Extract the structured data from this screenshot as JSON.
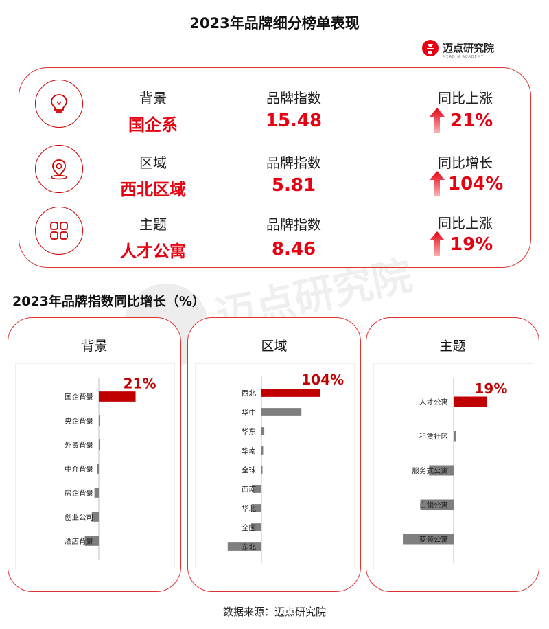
{
  "title": "2023年品牌细分榜单表现",
  "logo": {
    "name": "迈点研究院",
    "subtitle": "MEADIN ACADEMY"
  },
  "summary_rows": [
    {
      "icon": "lightbulb-icon",
      "category_label": "背景",
      "category_value": "国企系",
      "index_label": "品牌指数",
      "index_value": "15.48",
      "growth_label": "同比上涨",
      "growth_value": "21%"
    },
    {
      "icon": "location-pin-icon",
      "category_label": "区域",
      "category_value": "西北区域",
      "index_label": "品牌指数",
      "index_value": "5.81",
      "growth_label": "同比增长",
      "growth_value": "104%"
    },
    {
      "icon": "grid-apps-icon",
      "category_label": "主题",
      "category_value": "人才公寓",
      "index_label": "品牌指数",
      "index_value": "8.46",
      "growth_label": "同比上涨",
      "growth_value": "19%"
    }
  ],
  "section_title": "2023年品牌指数同比增长（%）",
  "source": "数据来源：迈点研究院",
  "watermark": {
    "name": "迈点研究院",
    "subtitle": "MEADIN ACADEMY"
  },
  "colors": {
    "accent": "#e60012",
    "bar_highlight": "#c00000",
    "bar_gray": "#7f7f7f",
    "border": "#dd3333"
  },
  "chart_data": [
    {
      "type": "bar",
      "title": "背景",
      "categories": [
        "国企背景",
        "央企背景",
        "外资背景",
        "中介背景",
        "房企背景",
        "创业公司",
        "酒店背景"
      ],
      "values": [
        21,
        0.5,
        0.5,
        -1,
        -2.5,
        -4,
        -8
      ],
      "highlight_label": "21%",
      "xlim": [
        -9,
        24
      ]
    },
    {
      "type": "bar",
      "title": "区域",
      "categories": [
        "西北",
        "华中",
        "华东",
        "华南",
        "全球",
        "西南",
        "华北",
        "全国",
        "东北"
      ],
      "values": [
        104,
        71,
        5,
        3,
        1,
        -16,
        -18,
        -18,
        -60
      ],
      "highlight_label": "104%",
      "xlim": [
        -62,
        110
      ]
    },
    {
      "type": "bar",
      "title": "主题",
      "categories": [
        "人才公寓",
        "租赁社区",
        "服务式公寓",
        "白领公寓",
        "蓝领公寓"
      ],
      "values": [
        19,
        1.5,
        -14,
        -19,
        -29
      ],
      "highlight_label": "19%",
      "xlim": [
        -30,
        22
      ]
    }
  ]
}
